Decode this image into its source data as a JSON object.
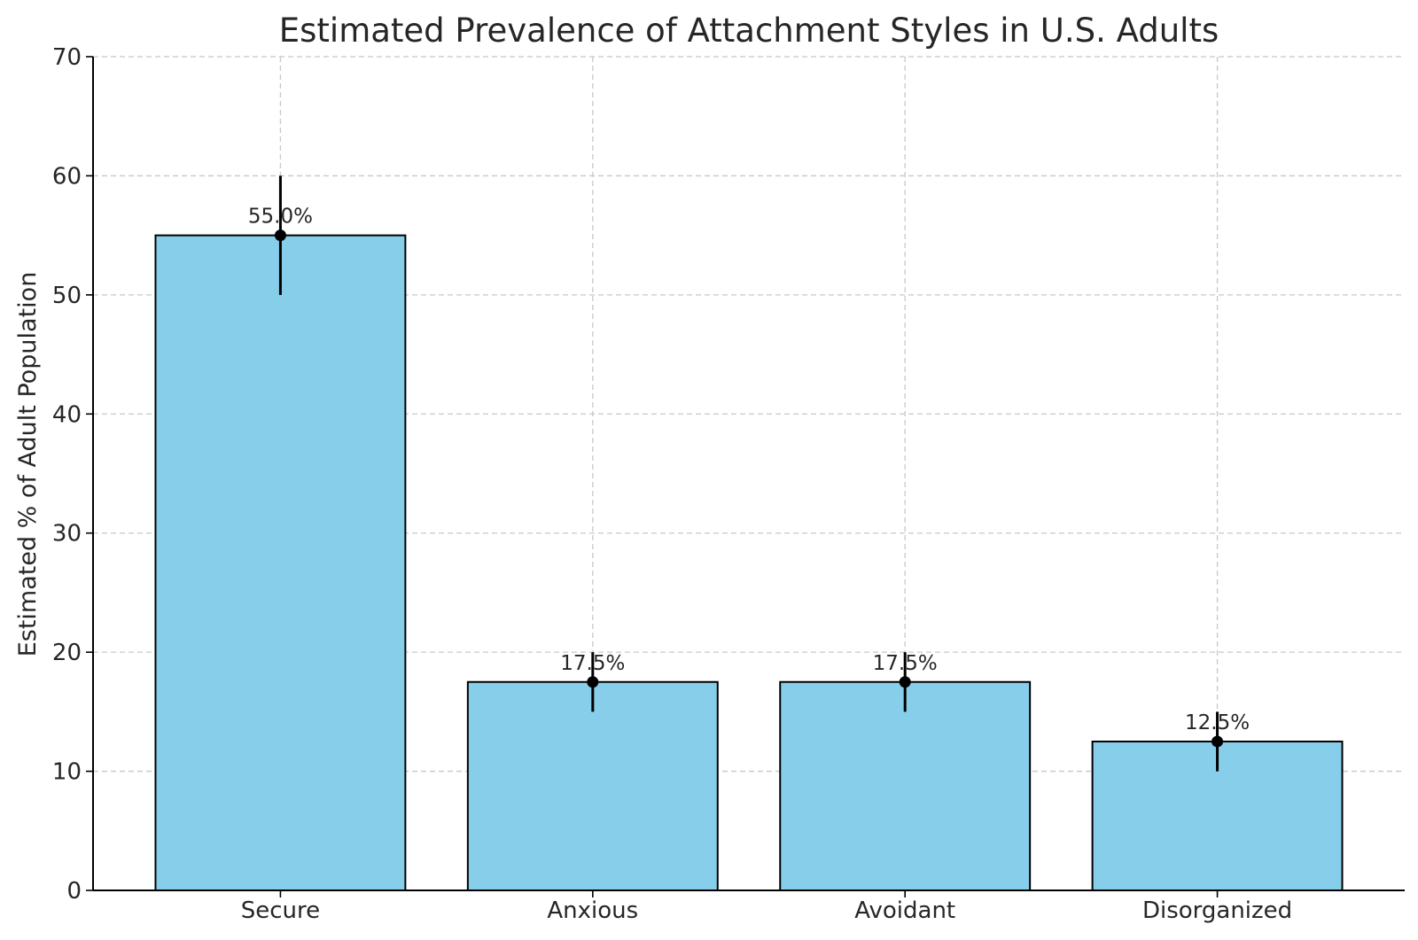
{
  "chart_data": {
    "type": "bar",
    "title": "Estimated Prevalence of Attachment Styles in U.S. Adults",
    "xlabel": "",
    "ylabel": "Estimated % of Adult Population",
    "categories": [
      "Secure",
      "Anxious",
      "Avoidant",
      "Disorganized"
    ],
    "values": [
      55.0,
      17.5,
      17.5,
      12.5
    ],
    "error_low": [
      50,
      15,
      15,
      10
    ],
    "error_high": [
      60,
      20,
      20,
      15
    ],
    "data_labels": [
      "55.0%",
      "17.5%",
      "17.5%",
      "12.5%"
    ],
    "ylim": [
      0,
      70
    ],
    "yticks": [
      0,
      10,
      20,
      30,
      40,
      50,
      60,
      70
    ],
    "grid": true,
    "bar_color": "#87CEEB",
    "error_color": "#000000"
  }
}
